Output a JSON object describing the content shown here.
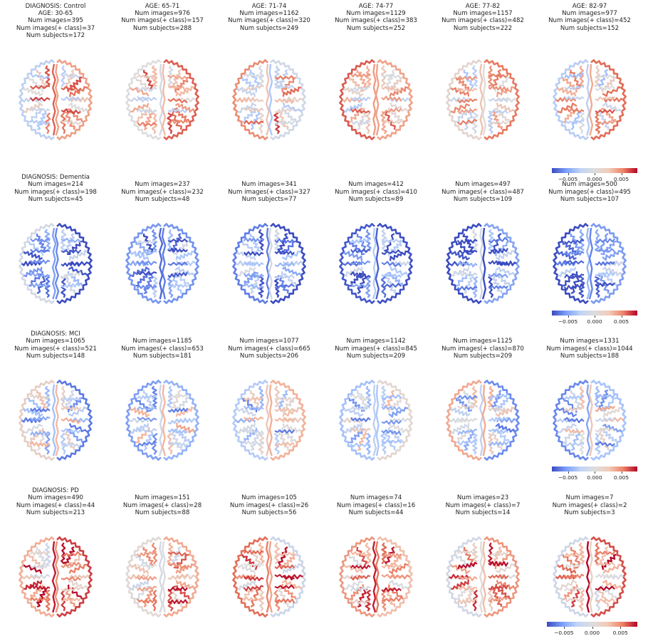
{
  "colormap": {
    "name": "coolwarm",
    "low": "#3b4cc0",
    "mid": "#dddddd",
    "high": "#b40426",
    "ticks": [
      "−0.005",
      "0.000",
      "0.005"
    ]
  },
  "chart_data": {
    "type": "heatmap",
    "description_of_grid": "4 rows (diagnosis) x 6 columns (age bins) of axial brain relevance maps",
    "rows": [
      {
        "diagnosis": "Control",
        "level": 0.25,
        "cells": [
          {
            "title": [
              "DIAGNOSIS: Control",
              "AGE: 30-65",
              "Num images=395",
              "Num images(+ class)=37",
              "Num subjects=172"
            ],
            "age": "30-65",
            "num_images": 395,
            "num_images_pos": 37,
            "num_subjects": 172
          },
          {
            "title": [
              "AGE: 65-71",
              "Num images=976",
              "Num images(+ class)=157",
              "Num subjects=288"
            ],
            "age": "65-71",
            "num_images": 976,
            "num_images_pos": 157,
            "num_subjects": 288
          },
          {
            "title": [
              "AGE: 71-74",
              "Num images=1162",
              "Num images(+ class)=320",
              "Num subjects=249"
            ],
            "age": "71-74",
            "num_images": 1162,
            "num_images_pos": 320,
            "num_subjects": 249
          },
          {
            "title": [
              "AGE: 74-77",
              "Num images=1129",
              "Num images(+ class)=383",
              "Num subjects=252"
            ],
            "age": "74-77",
            "num_images": 1129,
            "num_images_pos": 383,
            "num_subjects": 252
          },
          {
            "title": [
              "AGE: 77-82",
              "Num images=1157",
              "Num images(+ class)=482",
              "Num subjects=222"
            ],
            "age": "77-82",
            "num_images": 1157,
            "num_images_pos": 482,
            "num_subjects": 222
          },
          {
            "title": [
              "AGE: 82-97",
              "Num images=977",
              "Num images(+ class)=452",
              "Num subjects=152"
            ],
            "age": "82-97",
            "num_images": 977,
            "num_images_pos": 452,
            "num_subjects": 152
          }
        ]
      },
      {
        "diagnosis": "Dementia",
        "level": -0.55,
        "cells": [
          {
            "title": [
              "DIAGNOSIS: Dementia",
              "Num images=214",
              "Num images(+ class)=198",
              "Num subjects=45"
            ],
            "num_images": 214,
            "num_images_pos": 198,
            "num_subjects": 45
          },
          {
            "title": [
              "Num images=237",
              "Num images(+ class)=232",
              "Num subjects=48"
            ],
            "num_images": 237,
            "num_images_pos": 232,
            "num_subjects": 48
          },
          {
            "title": [
              "Num images=341",
              "Num images(+ class)=327",
              "Num subjects=77"
            ],
            "num_images": 341,
            "num_images_pos": 327,
            "num_subjects": 77
          },
          {
            "title": [
              "Num images=412",
              "Num images(+ class)=410",
              "Num subjects=89"
            ],
            "num_images": 412,
            "num_images_pos": 410,
            "num_subjects": 89
          },
          {
            "title": [
              "Num images=497",
              "Num images(+ class)=487",
              "Num subjects=109"
            ],
            "num_images": 497,
            "num_images_pos": 487,
            "num_subjects": 109
          },
          {
            "title": [
              "Num images=500",
              "Num images(+ class)=495",
              "Num subjects=107"
            ],
            "num_images": 500,
            "num_images_pos": 495,
            "num_subjects": 107
          }
        ]
      },
      {
        "diagnosis": "MCI",
        "level": -0.15,
        "cells": [
          {
            "title": [
              "DIAGNOSIS: MCI",
              "Num images=1065",
              "Num images(+ class)=521",
              "Num subjects=148"
            ],
            "num_images": 1065,
            "num_images_pos": 521,
            "num_subjects": 148
          },
          {
            "title": [
              "Num images=1185",
              "Num images(+ class)=653",
              "Num subjects=181"
            ],
            "num_images": 1185,
            "num_images_pos": 653,
            "num_subjects": 181
          },
          {
            "title": [
              "Num images=1077",
              "Num images(+ class)=665",
              "Num subjects=206"
            ],
            "num_images": 1077,
            "num_images_pos": 665,
            "num_subjects": 206
          },
          {
            "title": [
              "Num images=1142",
              "Num images(+ class)=845",
              "Num subjects=209"
            ],
            "num_images": 1142,
            "num_images_pos": 845,
            "num_subjects": 209
          },
          {
            "title": [
              "Num images=1125",
              "Num images(+ class)=870",
              "Num subjects=209"
            ],
            "num_images": 1125,
            "num_images_pos": 870,
            "num_subjects": 209
          },
          {
            "title": [
              "Num images=1331",
              "Num images(+ class)=1044",
              "Num subjects=188"
            ],
            "num_images": 1331,
            "num_images_pos": 1044,
            "num_subjects": 188
          }
        ]
      },
      {
        "diagnosis": "PD",
        "level": 0.45,
        "cells": [
          {
            "title": [
              "DIAGNOSIS: PD",
              "Num images=490",
              "Num images(+ class)=44",
              "Num subjects=213"
            ],
            "num_images": 490,
            "num_images_pos": 44,
            "num_subjects": 213
          },
          {
            "title": [
              "Num images=151",
              "Num images(+ class)=28",
              "Num subjects=88"
            ],
            "num_images": 151,
            "num_images_pos": 28,
            "num_subjects": 88
          },
          {
            "title": [
              "Num images=105",
              "Num images(+ class)=26",
              "Num subjects=56"
            ],
            "num_images": 105,
            "num_images_pos": 26,
            "num_subjects": 56
          },
          {
            "title": [
              "Num images=74",
              "Num images(+ class)=16",
              "Num subjects=44"
            ],
            "num_images": 74,
            "num_images_pos": 16,
            "num_subjects": 44
          },
          {
            "title": [
              "Num images=23",
              "Num images(+ class)=7",
              "Num subjects=14"
            ],
            "num_images": 23,
            "num_images_pos": 7,
            "num_subjects": 14
          },
          {
            "title": [
              "Num images=7",
              "Num images(+ class)=2",
              "Num subjects=3"
            ],
            "num_images": 7,
            "num_images_pos": 2,
            "num_subjects": 3
          }
        ]
      }
    ],
    "colorbar_ticks": [
      -0.005,
      0.0,
      0.005
    ]
  }
}
